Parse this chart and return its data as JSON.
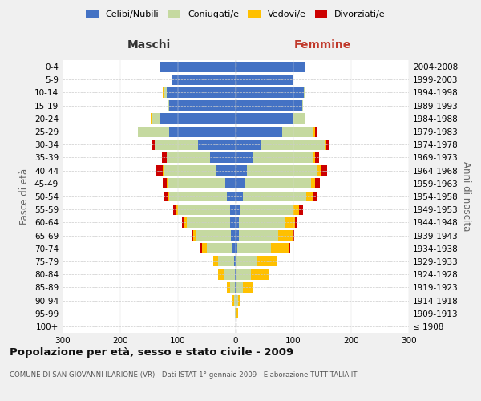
{
  "age_groups": [
    "100+",
    "95-99",
    "90-94",
    "85-89",
    "80-84",
    "75-79",
    "70-74",
    "65-69",
    "60-64",
    "55-59",
    "50-54",
    "45-49",
    "40-44",
    "35-39",
    "30-34",
    "25-29",
    "20-24",
    "15-19",
    "10-14",
    "5-9",
    "0-4"
  ],
  "birth_years": [
    "≤ 1908",
    "1909-1913",
    "1914-1918",
    "1919-1923",
    "1924-1928",
    "1929-1933",
    "1934-1938",
    "1939-1943",
    "1944-1948",
    "1949-1953",
    "1954-1958",
    "1959-1963",
    "1964-1968",
    "1969-1973",
    "1974-1978",
    "1979-1983",
    "1984-1988",
    "1989-1993",
    "1994-1998",
    "1999-2003",
    "2004-2008"
  ],
  "male": {
    "celibi": [
      0,
      0,
      0,
      2,
      2,
      3,
      5,
      8,
      10,
      10,
      15,
      18,
      35,
      45,
      65,
      115,
      130,
      115,
      120,
      110,
      130
    ],
    "coniugati": [
      0,
      1,
      3,
      8,
      18,
      28,
      45,
      60,
      75,
      90,
      100,
      100,
      90,
      75,
      75,
      55,
      15,
      2,
      4,
      0,
      0
    ],
    "vedovi": [
      0,
      0,
      2,
      5,
      10,
      8,
      8,
      5,
      5,
      3,
      3,
      2,
      2,
      0,
      0,
      0,
      2,
      0,
      2,
      0,
      0
    ],
    "divorziati": [
      0,
      0,
      0,
      0,
      0,
      0,
      3,
      3,
      3,
      5,
      7,
      7,
      10,
      8,
      5,
      0,
      0,
      0,
      0,
      0,
      0
    ]
  },
  "female": {
    "nubili": [
      0,
      0,
      0,
      2,
      2,
      2,
      3,
      5,
      5,
      8,
      12,
      15,
      20,
      30,
      45,
      80,
      100,
      115,
      118,
      100,
      120
    ],
    "coniugate": [
      0,
      2,
      4,
      10,
      25,
      35,
      58,
      68,
      80,
      90,
      110,
      115,
      120,
      105,
      110,
      55,
      20,
      2,
      3,
      0,
      0
    ],
    "vedove": [
      0,
      2,
      5,
      18,
      30,
      35,
      30,
      25,
      18,
      12,
      12,
      8,
      8,
      2,
      2,
      2,
      0,
      0,
      0,
      0,
      0
    ],
    "divorziate": [
      0,
      0,
      0,
      0,
      0,
      0,
      3,
      3,
      3,
      7,
      8,
      8,
      10,
      8,
      5,
      5,
      0,
      0,
      0,
      0,
      0
    ]
  },
  "colors": {
    "celibi": "#4472c4",
    "coniugati": "#c5d9a0",
    "vedovi": "#ffc000",
    "divorziati": "#cc0000"
  },
  "xlim": 300,
  "title": "Popolazione per età, sesso e stato civile - 2009",
  "subtitle": "COMUNE DI SAN GIOVANNI ILARIONE (VR) - Dati ISTAT 1° gennaio 2009 - Elaborazione TUTTITALIA.IT",
  "ylabel_left": "Fasce di età",
  "ylabel_right": "Anni di nascita",
  "xlabel_male": "Maschi",
  "xlabel_female": "Femmine",
  "bg_color": "#f0f0f0",
  "plot_bg": "#ffffff"
}
